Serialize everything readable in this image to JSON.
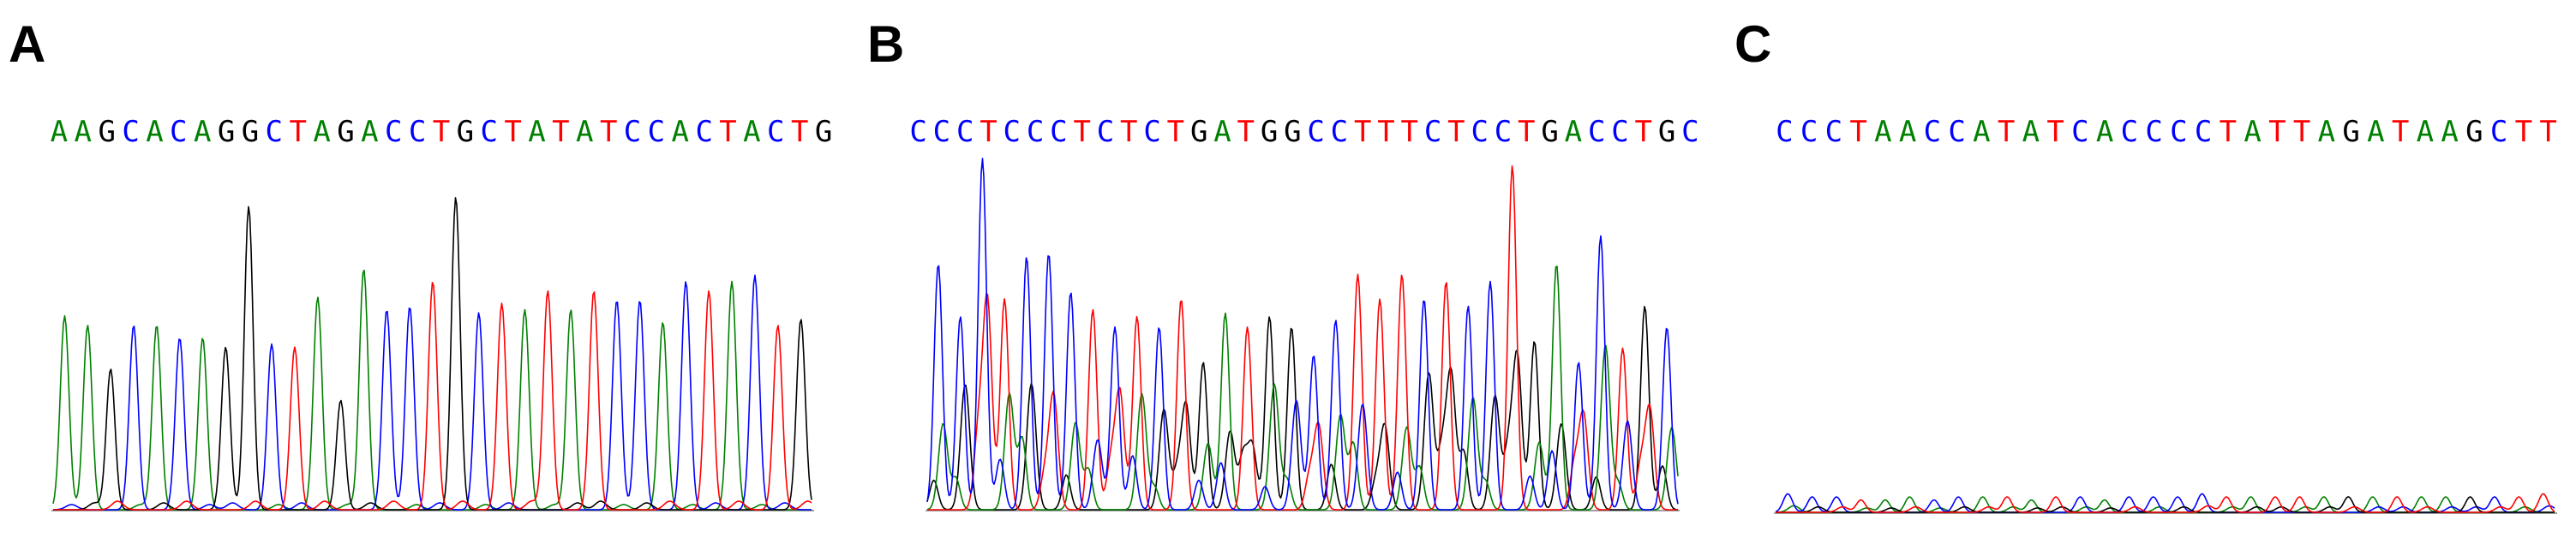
{
  "colors": {
    "A": "#008000",
    "C": "#0000ff",
    "G": "#000000",
    "T": "#ff0000",
    "baseline": "#7f7f7f"
  },
  "panels": [
    {
      "label": "A",
      "sequence": "AAGCACAGGCTAGACCTGCTATATCCACTACTG",
      "signal": "clean",
      "peak_heights": [
        0.62,
        0.59,
        0.45,
        0.59,
        0.59,
        0.55,
        0.55,
        0.52,
        0.97,
        0.53,
        0.52,
        0.68,
        0.35,
        0.77,
        0.64,
        0.65,
        0.73,
        1.0,
        0.63,
        0.66,
        0.64,
        0.7,
        0.64,
        0.7,
        0.67,
        0.67,
        0.6,
        0.73,
        0.7,
        0.73,
        0.75,
        0.59,
        0.61
      ]
    },
    {
      "label": "B",
      "sequence": "CCCTCCCTCTCTGATGGCCTTTCTCCTGACCTGC",
      "signal": "mixed",
      "peak_heights": [
        0.7,
        0.55,
        1.0,
        0.6,
        0.72,
        0.73,
        0.62,
        0.57,
        0.52,
        0.55,
        0.52,
        0.6,
        0.42,
        0.56,
        0.52,
        0.55,
        0.52,
        0.44,
        0.54,
        0.67,
        0.6,
        0.67,
        0.6,
        0.65,
        0.58,
        0.65,
        0.98,
        0.48,
        0.7,
        0.42,
        0.78,
        0.46,
        0.58,
        0.52
      ]
    },
    {
      "label": "C",
      "sequence": "CCCTAACCATATCACCCCTATTAGATAAGCTT",
      "signal": "weak",
      "peak_heights": [
        0.06,
        0.05,
        0.05,
        0.04,
        0.04,
        0.05,
        0.04,
        0.05,
        0.05,
        0.05,
        0.04,
        0.05,
        0.05,
        0.04,
        0.05,
        0.05,
        0.05,
        0.06,
        0.05,
        0.05,
        0.05,
        0.05,
        0.05,
        0.05,
        0.05,
        0.05,
        0.05,
        0.05,
        0.05,
        0.05,
        0.05,
        0.06
      ]
    }
  ]
}
